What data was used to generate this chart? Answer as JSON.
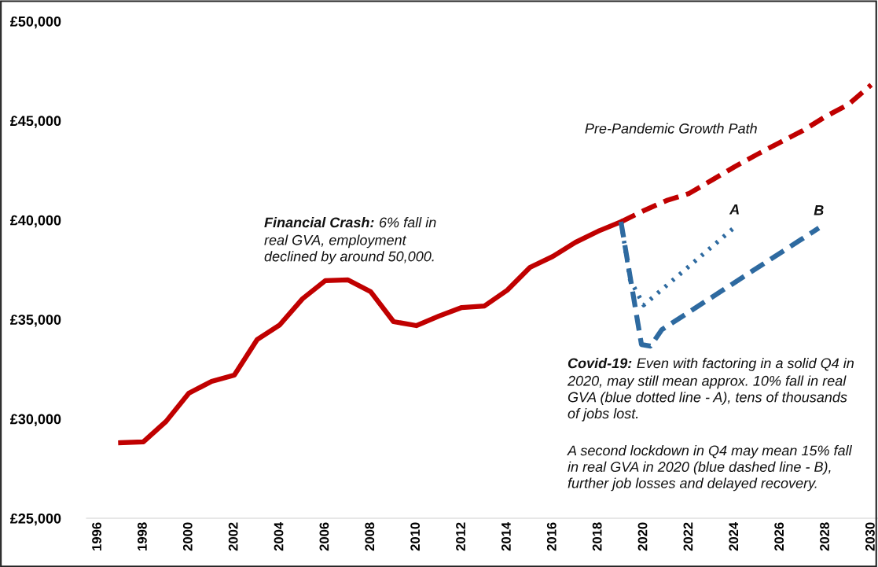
{
  "chart_data": {
    "type": "line",
    "ylim": [
      25000,
      50000
    ],
    "yticks": [
      {
        "value": 25000,
        "label": "£25,000"
      },
      {
        "value": 30000,
        "label": "£30,000"
      },
      {
        "value": 35000,
        "label": "£35,000"
      },
      {
        "value": 40000,
        "label": "£40,000"
      },
      {
        "value": 45000,
        "label": "£45,000"
      },
      {
        "value": 50000,
        "label": "£50,000"
      }
    ],
    "xlim": [
      1995.5,
      2030.3
    ],
    "xticks": [
      1996,
      1998,
      2000,
      2002,
      2004,
      2006,
      2008,
      2010,
      2012,
      2014,
      2016,
      2018,
      2020,
      2022,
      2024,
      2026,
      2028,
      2030
    ],
    "grid": false,
    "legend": false,
    "marker": "none",
    "series": [
      {
        "color": "#c00000",
        "line_style": "solid",
        "x": [
          1997,
          1998,
          1999,
          2000,
          2001,
          2002,
          2003,
          2004,
          2005,
          2006,
          2007,
          2008,
          2009,
          2010,
          2011,
          2012,
          2013,
          2014,
          2015,
          2016,
          2017,
          2018,
          2019
        ],
        "values": [
          28800,
          28840,
          29870,
          31290,
          31880,
          32200,
          33980,
          34730,
          36040,
          36950,
          36990,
          36390,
          34890,
          34690,
          35170,
          35600,
          35680,
          36470,
          37620,
          38170,
          38880,
          39440,
          39910
        ]
      },
      {
        "name": "Pre-Pandemic Growth Path",
        "color": "#c00000",
        "line_style": "dashed",
        "x": [
          2019,
          2020,
          2021,
          2022,
          2023,
          2024,
          2025,
          2026,
          2027,
          2028,
          2029,
          2030
        ],
        "values": [
          39910,
          40470,
          40980,
          41340,
          42010,
          42680,
          43310,
          43910,
          44500,
          45210,
          45810,
          46800
        ]
      },
      {
        "name": "A",
        "color": "#2e6aa0",
        "line_style": "dotted",
        "x": [
          2019,
          2019.4,
          2020,
          2024
        ],
        "values": [
          39910,
          37000,
          35720,
          39640
        ]
      },
      {
        "name": "B",
        "color": "#2e6aa0",
        "line_style": "dashed",
        "x": [
          2019,
          2019.9,
          2020.3,
          2020.8,
          2027.7
        ],
        "values": [
          39910,
          33740,
          33660,
          34490,
          39600
        ]
      }
    ],
    "annotations": [
      "Financial Crash:",
      "6% fall in\nreal GVA, employment\ndeclined by around 50,000.",
      "Covid-19:",
      "Even with factoring in a solid Q4 in\n2020, may still mean approx. 10% fall in real\nGVA (blue dotted line - A), tens of thousands\nof jobs lost.",
      "A second lockdown in Q4 may mean 15% fall\nin real GVA in 2020 (blue dashed line - B),\nfurther job losses and delayed recovery."
    ]
  }
}
